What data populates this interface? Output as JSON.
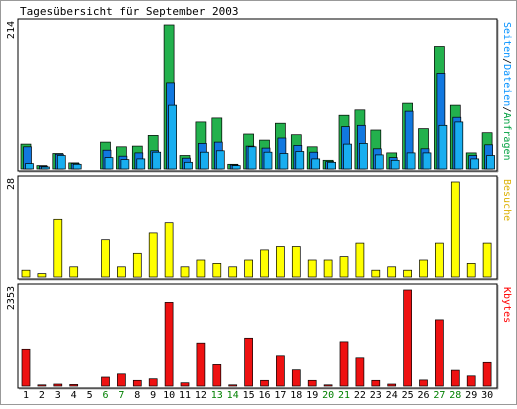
{
  "chart_data": {
    "type": "bar",
    "title": "Tagesübersicht für September 2003",
    "categories": [
      "1",
      "2",
      "3",
      "4",
      "5",
      "6",
      "7",
      "8",
      "9",
      "10",
      "11",
      "12",
      "13",
      "14",
      "15",
      "16",
      "17",
      "18",
      "19",
      "20",
      "21",
      "22",
      "23",
      "24",
      "25",
      "26",
      "27",
      "28",
      "29",
      "30"
    ],
    "weekend_days": [
      "6",
      "7",
      "13",
      "14",
      "20",
      "21",
      "27",
      "28"
    ],
    "panels": [
      {
        "max_label": "214",
        "ymax": 214,
        "right_label_parts": [
          {
            "text": "Seiten",
            "color": "#0090ff"
          },
          {
            "text": "/",
            "color": "#000000"
          },
          {
            "text": "Dateien",
            "color": "#0090ff"
          },
          {
            "text": "/",
            "color": "#000000"
          },
          {
            "text": "Anfragen",
            "color": "#00a040"
          }
        ],
        "series": [
          {
            "name": "Anfragen",
            "color": "#23b14d",
            "values": [
              37,
              5,
              23,
              9,
              0,
              40,
              33,
              34,
              50,
              214,
              20,
              70,
              76,
              7,
              52,
              43,
              68,
              51,
              33,
              13,
              80,
              88,
              58,
              24,
              98,
              60,
              182,
              95,
              24,
              54
            ]
          },
          {
            "name": "Dateien",
            "color": "#1178e0",
            "values": [
              33,
              4,
              22,
              8,
              0,
              28,
              19,
              24,
              27,
              128,
              16,
              38,
              40,
              6,
              34,
              31,
              46,
              35,
              25,
              11,
              63,
              65,
              30,
              17,
              86,
              30,
              142,
              77,
              20,
              36
            ]
          },
          {
            "name": "Seiten",
            "color": "#18aef0",
            "values": [
              8,
              3,
              20,
              7,
              0,
              17,
              14,
              15,
              25,
              95,
              10,
              25,
              27,
              5,
              33,
              25,
              23,
              26,
              15,
              10,
              37,
              38,
              21,
              13,
              24,
              24,
              65,
              70,
              15,
              20
            ]
          }
        ]
      },
      {
        "max_label": "28",
        "ymax": 28,
        "right_label_parts": [
          {
            "text": "Besuche",
            "color": "#dcb000"
          }
        ],
        "series": [
          {
            "name": "Besuche",
            "color": "#ffff00",
            "values": [
              2,
              1,
              17,
              3,
              0,
              11,
              3,
              7,
              13,
              16,
              3,
              5,
              4,
              3,
              5,
              8,
              9,
              9,
              5,
              5,
              6,
              10,
              2,
              3,
              2,
              5,
              10,
              28,
              4,
              10
            ]
          }
        ]
      },
      {
        "max_label": "2353",
        "ymax": 2353,
        "right_label_parts": [
          {
            "text": "Kbytes",
            "color": "#ff0000"
          }
        ],
        "series": [
          {
            "name": "Kbytes",
            "color": "#ee1111",
            "values": [
              900,
              30,
              50,
              40,
              0,
              220,
              300,
              140,
              180,
              2050,
              80,
              1050,
              530,
              30,
              1170,
              140,
              740,
              400,
              140,
              30,
              1080,
              690,
              140,
              50,
              2353,
              150,
              1620,
              390,
              250,
              580
            ]
          }
        ]
      }
    ]
  },
  "colors": {
    "weekday_label": "#000000",
    "weekend_label": "#008000"
  }
}
